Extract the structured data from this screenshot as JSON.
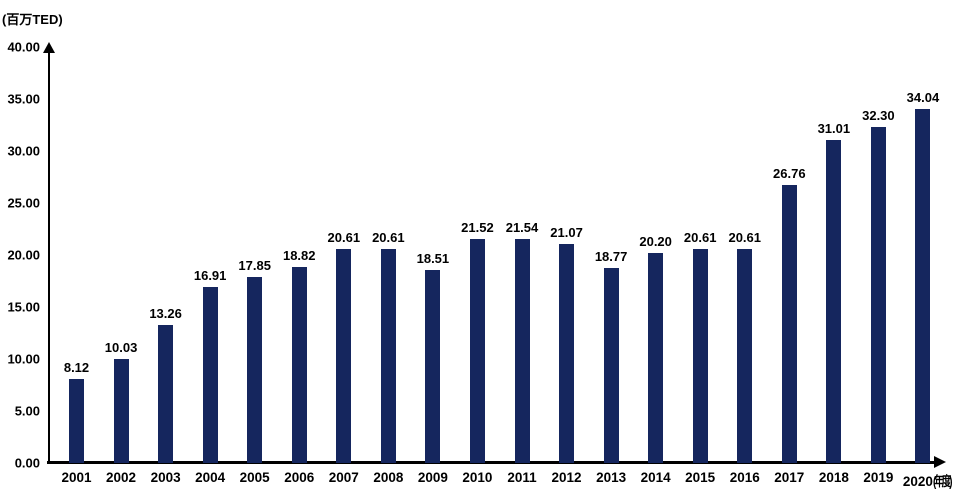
{
  "chart_data": {
    "type": "bar",
    "title": "",
    "unit_label": "(百万TED)",
    "x_axis_suffix": "(年度)",
    "xlabel": "",
    "ylabel": "(百万TED)",
    "ylim": [
      0,
      40
    ],
    "grid": false,
    "legend_position": "none",
    "bar_color": "#15265e",
    "axis_color": "#000000",
    "categories": [
      "2001",
      "2002",
      "2003",
      "2004",
      "2005",
      "2006",
      "2007",
      "2008",
      "2009",
      "2010",
      "2011",
      "2012",
      "2013",
      "2014",
      "2015",
      "2016",
      "2017",
      "2018",
      "2019",
      "2020"
    ],
    "values": [
      8.12,
      10.03,
      13.26,
      16.91,
      17.85,
      18.82,
      20.61,
      20.61,
      18.51,
      21.52,
      21.54,
      21.07,
      18.77,
      20.2,
      20.61,
      20.61,
      26.76,
      31.01,
      32.3,
      34.04
    ],
    "value_labels": [
      "8.12",
      "10.03",
      "13.26",
      "16.91",
      "17.85",
      "18.82",
      "20.61",
      "20.61",
      "18.51",
      "21.52",
      "21.54",
      "21.07",
      "18.77",
      "20.20",
      "20.61",
      "20.61",
      "26.76",
      "31.01",
      "32.30",
      "34.04"
    ],
    "y_ticks": [
      "0.00",
      "5.00",
      "10.00",
      "15.00",
      "20.00",
      "25.00",
      "30.00",
      "35.00",
      "40.00"
    ]
  }
}
